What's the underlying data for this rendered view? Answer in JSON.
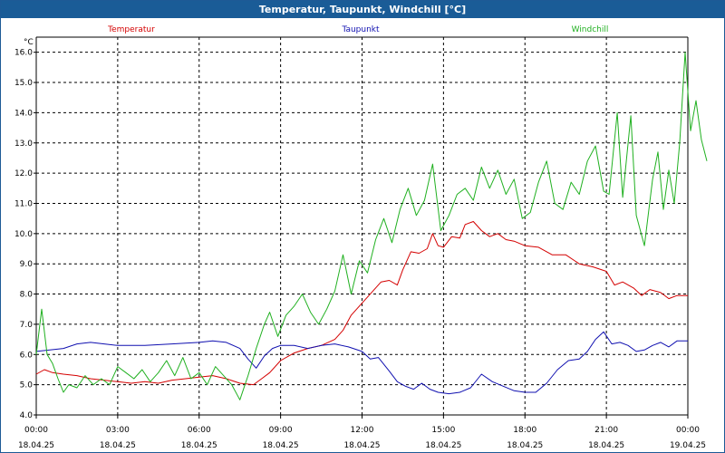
{
  "window": {
    "title": "Temperatur, Taupunkt, Windchill [°C]"
  },
  "chart_data": {
    "type": "line",
    "title": "Temperatur, Taupunkt, Windchill [°C]",
    "ylabel": "°C",
    "xlabel": "",
    "ylim": [
      4.0,
      16.5
    ],
    "xlim": [
      0,
      24
    ],
    "grid": true,
    "yticks": [
      {
        "v": 4.0,
        "label": "4.0"
      },
      {
        "v": 5.0,
        "label": "5.0"
      },
      {
        "v": 6.0,
        "label": "6.0"
      },
      {
        "v": 7.0,
        "label": "7.0"
      },
      {
        "v": 8.0,
        "label": "8.0"
      },
      {
        "v": 9.0,
        "label": "9.0"
      },
      {
        "v": 10.0,
        "label": "10.0"
      },
      {
        "v": 11.0,
        "label": "11.0"
      },
      {
        "v": 12.0,
        "label": "12.0"
      },
      {
        "v": 13.0,
        "label": "13.0"
      },
      {
        "v": 14.0,
        "label": "14.0"
      },
      {
        "v": 15.0,
        "label": "15.0"
      },
      {
        "v": 16.0,
        "label": "16.0"
      }
    ],
    "xticks": [
      {
        "v": 0,
        "time": "00:00",
        "date": "18.04.25"
      },
      {
        "v": 3,
        "time": "03:00",
        "date": "18.04.25"
      },
      {
        "v": 6,
        "time": "06:00",
        "date": "18.04.25"
      },
      {
        "v": 9,
        "time": "09:00",
        "date": "18.04.25"
      },
      {
        "v": 12,
        "time": "12:00",
        "date": "18.04.25"
      },
      {
        "v": 15,
        "time": "15:00",
        "date": "18.04.25"
      },
      {
        "v": 18,
        "time": "18:00",
        "date": "18.04.25"
      },
      {
        "v": 21,
        "time": "21:00",
        "date": "18.04.25"
      },
      {
        "v": 24,
        "time": "00:00",
        "date": "19.04.25"
      }
    ],
    "series": [
      {
        "name": "Temperatur",
        "color": "#d40000",
        "legend_pos": "left",
        "points": [
          [
            0,
            5.35
          ],
          [
            0.3,
            5.5
          ],
          [
            0.6,
            5.4
          ],
          [
            1,
            5.35
          ],
          [
            1.5,
            5.3
          ],
          [
            2,
            5.2
          ],
          [
            2.5,
            5.15
          ],
          [
            3,
            5.1
          ],
          [
            3.5,
            5.05
          ],
          [
            4,
            5.1
          ],
          [
            4.5,
            5.05
          ],
          [
            5,
            5.15
          ],
          [
            5.5,
            5.2
          ],
          [
            6,
            5.25
          ],
          [
            6.5,
            5.3
          ],
          [
            7,
            5.2
          ],
          [
            7.5,
            5.05
          ],
          [
            8,
            5.0
          ],
          [
            8.3,
            5.2
          ],
          [
            8.6,
            5.4
          ],
          [
            9,
            5.8
          ],
          [
            9.5,
            6.05
          ],
          [
            10,
            6.2
          ],
          [
            10.5,
            6.3
          ],
          [
            11,
            6.5
          ],
          [
            11.3,
            6.8
          ],
          [
            11.6,
            7.3
          ],
          [
            12,
            7.7
          ],
          [
            12.3,
            8.0
          ],
          [
            12.7,
            8.4
          ],
          [
            13,
            8.45
          ],
          [
            13.3,
            8.3
          ],
          [
            13.5,
            8.8
          ],
          [
            13.8,
            9.4
          ],
          [
            14.1,
            9.35
          ],
          [
            14.4,
            9.5
          ],
          [
            14.6,
            10.0
          ],
          [
            14.8,
            9.6
          ],
          [
            15,
            9.55
          ],
          [
            15.3,
            9.9
          ],
          [
            15.6,
            9.85
          ],
          [
            15.8,
            10.3
          ],
          [
            16.1,
            10.4
          ],
          [
            16.4,
            10.1
          ],
          [
            16.7,
            9.9
          ],
          [
            17,
            10.0
          ],
          [
            17.3,
            9.8
          ],
          [
            17.6,
            9.75
          ],
          [
            18,
            9.6
          ],
          [
            18.5,
            9.55
          ],
          [
            19,
            9.3
          ],
          [
            19.5,
            9.3
          ],
          [
            20,
            9.0
          ],
          [
            20.5,
            8.9
          ],
          [
            21,
            8.75
          ],
          [
            21.3,
            8.3
          ],
          [
            21.6,
            8.4
          ],
          [
            22,
            8.2
          ],
          [
            22.3,
            7.95
          ],
          [
            22.6,
            8.15
          ],
          [
            23,
            8.05
          ],
          [
            23.3,
            7.85
          ],
          [
            23.6,
            7.95
          ],
          [
            24,
            7.95
          ]
        ]
      },
      {
        "name": "Taupunkt",
        "color": "#1010b0",
        "legend_pos": "center",
        "points": [
          [
            0,
            6.1
          ],
          [
            0.5,
            6.15
          ],
          [
            1,
            6.2
          ],
          [
            1.5,
            6.35
          ],
          [
            2,
            6.4
          ],
          [
            2.5,
            6.35
          ],
          [
            3,
            6.3
          ],
          [
            4,
            6.3
          ],
          [
            5,
            6.35
          ],
          [
            6,
            6.4
          ],
          [
            6.5,
            6.45
          ],
          [
            7,
            6.4
          ],
          [
            7.5,
            6.2
          ],
          [
            7.8,
            5.85
          ],
          [
            8.1,
            5.55
          ],
          [
            8.4,
            5.95
          ],
          [
            8.7,
            6.2
          ],
          [
            9,
            6.3
          ],
          [
            9.5,
            6.3
          ],
          [
            10,
            6.2
          ],
          [
            10.5,
            6.3
          ],
          [
            11,
            6.35
          ],
          [
            11.5,
            6.25
          ],
          [
            12,
            6.1
          ],
          [
            12.3,
            5.85
          ],
          [
            12.6,
            5.9
          ],
          [
            13,
            5.45
          ],
          [
            13.3,
            5.1
          ],
          [
            13.6,
            4.95
          ],
          [
            13.9,
            4.85
          ],
          [
            14.2,
            5.05
          ],
          [
            14.5,
            4.85
          ],
          [
            14.8,
            4.75
          ],
          [
            15.2,
            4.7
          ],
          [
            15.6,
            4.75
          ],
          [
            16,
            4.9
          ],
          [
            16.4,
            5.35
          ],
          [
            16.8,
            5.1
          ],
          [
            17.2,
            4.95
          ],
          [
            17.6,
            4.8
          ],
          [
            18,
            4.75
          ],
          [
            18.4,
            4.75
          ],
          [
            18.8,
            5.05
          ],
          [
            19.2,
            5.5
          ],
          [
            19.6,
            5.8
          ],
          [
            20,
            5.85
          ],
          [
            20.3,
            6.1
          ],
          [
            20.6,
            6.5
          ],
          [
            20.9,
            6.75
          ],
          [
            21.2,
            6.35
          ],
          [
            21.5,
            6.4
          ],
          [
            21.8,
            6.3
          ],
          [
            22.1,
            6.1
          ],
          [
            22.4,
            6.15
          ],
          [
            22.7,
            6.3
          ],
          [
            23,
            6.4
          ],
          [
            23.3,
            6.25
          ],
          [
            23.6,
            6.45
          ],
          [
            24,
            6.45
          ]
        ]
      },
      {
        "name": "Windchill",
        "color": "#20b020",
        "legend_pos": "right",
        "points": [
          [
            0,
            6.0
          ],
          [
            0.2,
            7.5
          ],
          [
            0.4,
            6.0
          ],
          [
            0.6,
            5.7
          ],
          [
            0.8,
            5.2
          ],
          [
            1,
            4.75
          ],
          [
            1.2,
            5.0
          ],
          [
            1.5,
            4.9
          ],
          [
            1.8,
            5.3
          ],
          [
            2.1,
            5.0
          ],
          [
            2.4,
            5.2
          ],
          [
            2.7,
            5.0
          ],
          [
            3,
            5.6
          ],
          [
            3.3,
            5.4
          ],
          [
            3.6,
            5.2
          ],
          [
            3.9,
            5.5
          ],
          [
            4.2,
            5.1
          ],
          [
            4.5,
            5.4
          ],
          [
            4.8,
            5.8
          ],
          [
            5.1,
            5.3
          ],
          [
            5.4,
            5.9
          ],
          [
            5.7,
            5.2
          ],
          [
            6,
            5.4
          ],
          [
            6.3,
            5.0
          ],
          [
            6.6,
            5.6
          ],
          [
            6.9,
            5.3
          ],
          [
            7.2,
            5.0
          ],
          [
            7.5,
            4.5
          ],
          [
            7.8,
            5.3
          ],
          [
            8.1,
            6.2
          ],
          [
            8.4,
            7.0
          ],
          [
            8.6,
            7.4
          ],
          [
            8.9,
            6.6
          ],
          [
            9.2,
            7.3
          ],
          [
            9.5,
            7.6
          ],
          [
            9.8,
            8.0
          ],
          [
            10.1,
            7.4
          ],
          [
            10.4,
            7.0
          ],
          [
            10.7,
            7.5
          ],
          [
            11,
            8.1
          ],
          [
            11.3,
            9.3
          ],
          [
            11.6,
            8.0
          ],
          [
            11.9,
            9.1
          ],
          [
            12.2,
            8.7
          ],
          [
            12.5,
            9.8
          ],
          [
            12.8,
            10.5
          ],
          [
            13.1,
            9.7
          ],
          [
            13.4,
            10.8
          ],
          [
            13.7,
            11.5
          ],
          [
            14,
            10.6
          ],
          [
            14.3,
            11.1
          ],
          [
            14.6,
            12.3
          ],
          [
            14.9,
            10.1
          ],
          [
            15.2,
            10.6
          ],
          [
            15.5,
            11.3
          ],
          [
            15.8,
            11.5
          ],
          [
            16.1,
            11.1
          ],
          [
            16.4,
            12.2
          ],
          [
            16.7,
            11.5
          ],
          [
            17,
            12.1
          ],
          [
            17.3,
            11.3
          ],
          [
            17.6,
            11.8
          ],
          [
            17.9,
            10.5
          ],
          [
            18.2,
            10.7
          ],
          [
            18.5,
            11.7
          ],
          [
            18.8,
            12.4
          ],
          [
            19.1,
            11.0
          ],
          [
            19.4,
            10.8
          ],
          [
            19.7,
            11.7
          ],
          [
            20,
            11.3
          ],
          [
            20.3,
            12.4
          ],
          [
            20.6,
            12.9
          ],
          [
            20.9,
            11.4
          ],
          [
            21.1,
            11.3
          ],
          [
            21.4,
            14.0
          ],
          [
            21.6,
            11.2
          ],
          [
            21.9,
            13.9
          ],
          [
            22.1,
            10.6
          ],
          [
            22.4,
            9.6
          ],
          [
            22.7,
            11.8
          ],
          [
            22.9,
            12.7
          ],
          [
            23.1,
            10.8
          ],
          [
            23.3,
            12.1
          ],
          [
            23.5,
            11.0
          ],
          [
            23.7,
            13.0
          ],
          [
            23.9,
            16.0
          ],
          [
            24.1,
            13.4
          ],
          [
            24.3,
            14.4
          ],
          [
            24.5,
            13.1
          ],
          [
            24.7,
            12.4
          ]
        ]
      }
    ]
  }
}
